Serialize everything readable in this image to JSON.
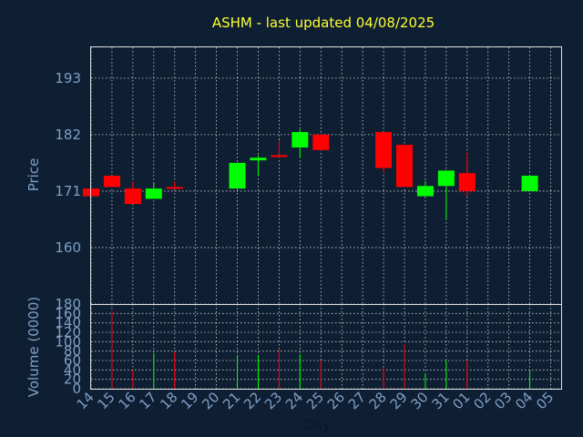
{
  "chart_data": {
    "type": "candlestick",
    "title": "ASHM - last updated 04/08/2025",
    "colors": {
      "up": "#00ff00",
      "down": "#ff0000",
      "background": "#0f1f33",
      "text": "#7f9fc4",
      "title": "#ffff33"
    },
    "price_panel": {
      "ylabel": "Price",
      "ylim": [
        149,
        199
      ],
      "yticks": [
        160,
        171,
        182,
        193
      ],
      "grid": true
    },
    "volume_panel": {
      "ylabel": "Volume (0000)",
      "ylim": [
        0,
        180
      ],
      "yticks": [
        0,
        20,
        40,
        60,
        80,
        100,
        120,
        140,
        160,
        180
      ],
      "grid": true
    },
    "xlabel": "Day",
    "x_tick_labels": [
      "14",
      "15",
      "16",
      "17",
      "18",
      "19",
      "20",
      "21",
      "22",
      "23",
      "24",
      "25",
      "26",
      "27",
      "28",
      "29",
      "30",
      "31",
      "01",
      "02",
      "03",
      "04",
      "05"
    ],
    "candles": [
      {
        "x": "14",
        "open": 171.5,
        "close": 170.0,
        "high": 171.5,
        "low": 170.0,
        "volume": 0
      },
      {
        "x": "15",
        "open": 174.0,
        "close": 171.8,
        "high": 174.0,
        "low": 171.8,
        "volume": 165
      },
      {
        "x": "16",
        "open": 171.5,
        "close": 168.5,
        "high": 172.8,
        "low": 168.5,
        "volume": 40
      },
      {
        "x": "17",
        "open": 169.5,
        "close": 171.5,
        "high": 172.5,
        "low": 169.5,
        "volume": 75
      },
      {
        "x": "18",
        "open": 171.8,
        "close": 171.5,
        "high": 172.8,
        "low": 171.5,
        "volume": 78
      },
      {
        "x": "21",
        "open": 171.5,
        "close": 176.5,
        "high": 176.5,
        "low": 171.5,
        "volume": 72
      },
      {
        "x": "22",
        "open": 177.0,
        "close": 177.5,
        "high": 178.0,
        "low": 174.0,
        "volume": 72
      },
      {
        "x": "23",
        "open": 178.0,
        "close": 177.8,
        "high": 181.0,
        "low": 177.5,
        "volume": 85
      },
      {
        "x": "24",
        "open": 179.5,
        "close": 182.5,
        "high": 183.0,
        "low": 177.5,
        "volume": 73
      },
      {
        "x": "25",
        "open": 182.0,
        "close": 179.0,
        "high": 182.0,
        "low": 179.0,
        "volume": 60
      },
      {
        "x": "28",
        "open": 182.5,
        "close": 175.5,
        "high": 182.5,
        "low": 174.5,
        "volume": 45
      },
      {
        "x": "29",
        "open": 180.0,
        "close": 171.8,
        "high": 180.0,
        "low": 171.8,
        "volume": 95
      },
      {
        "x": "30",
        "open": 170.0,
        "close": 172.0,
        "high": 173.0,
        "low": 170.0,
        "volume": 32
      },
      {
        "x": "31",
        "open": 172.0,
        "close": 175.0,
        "high": 175.0,
        "low": 165.5,
        "volume": 60
      },
      {
        "x": "01",
        "open": 174.5,
        "close": 171.0,
        "high": 178.5,
        "low": 170.0,
        "volume": 60
      },
      {
        "x": "04",
        "open": 171.0,
        "close": 174.0,
        "high": 174.0,
        "low": 171.0,
        "volume": 40
      }
    ]
  }
}
